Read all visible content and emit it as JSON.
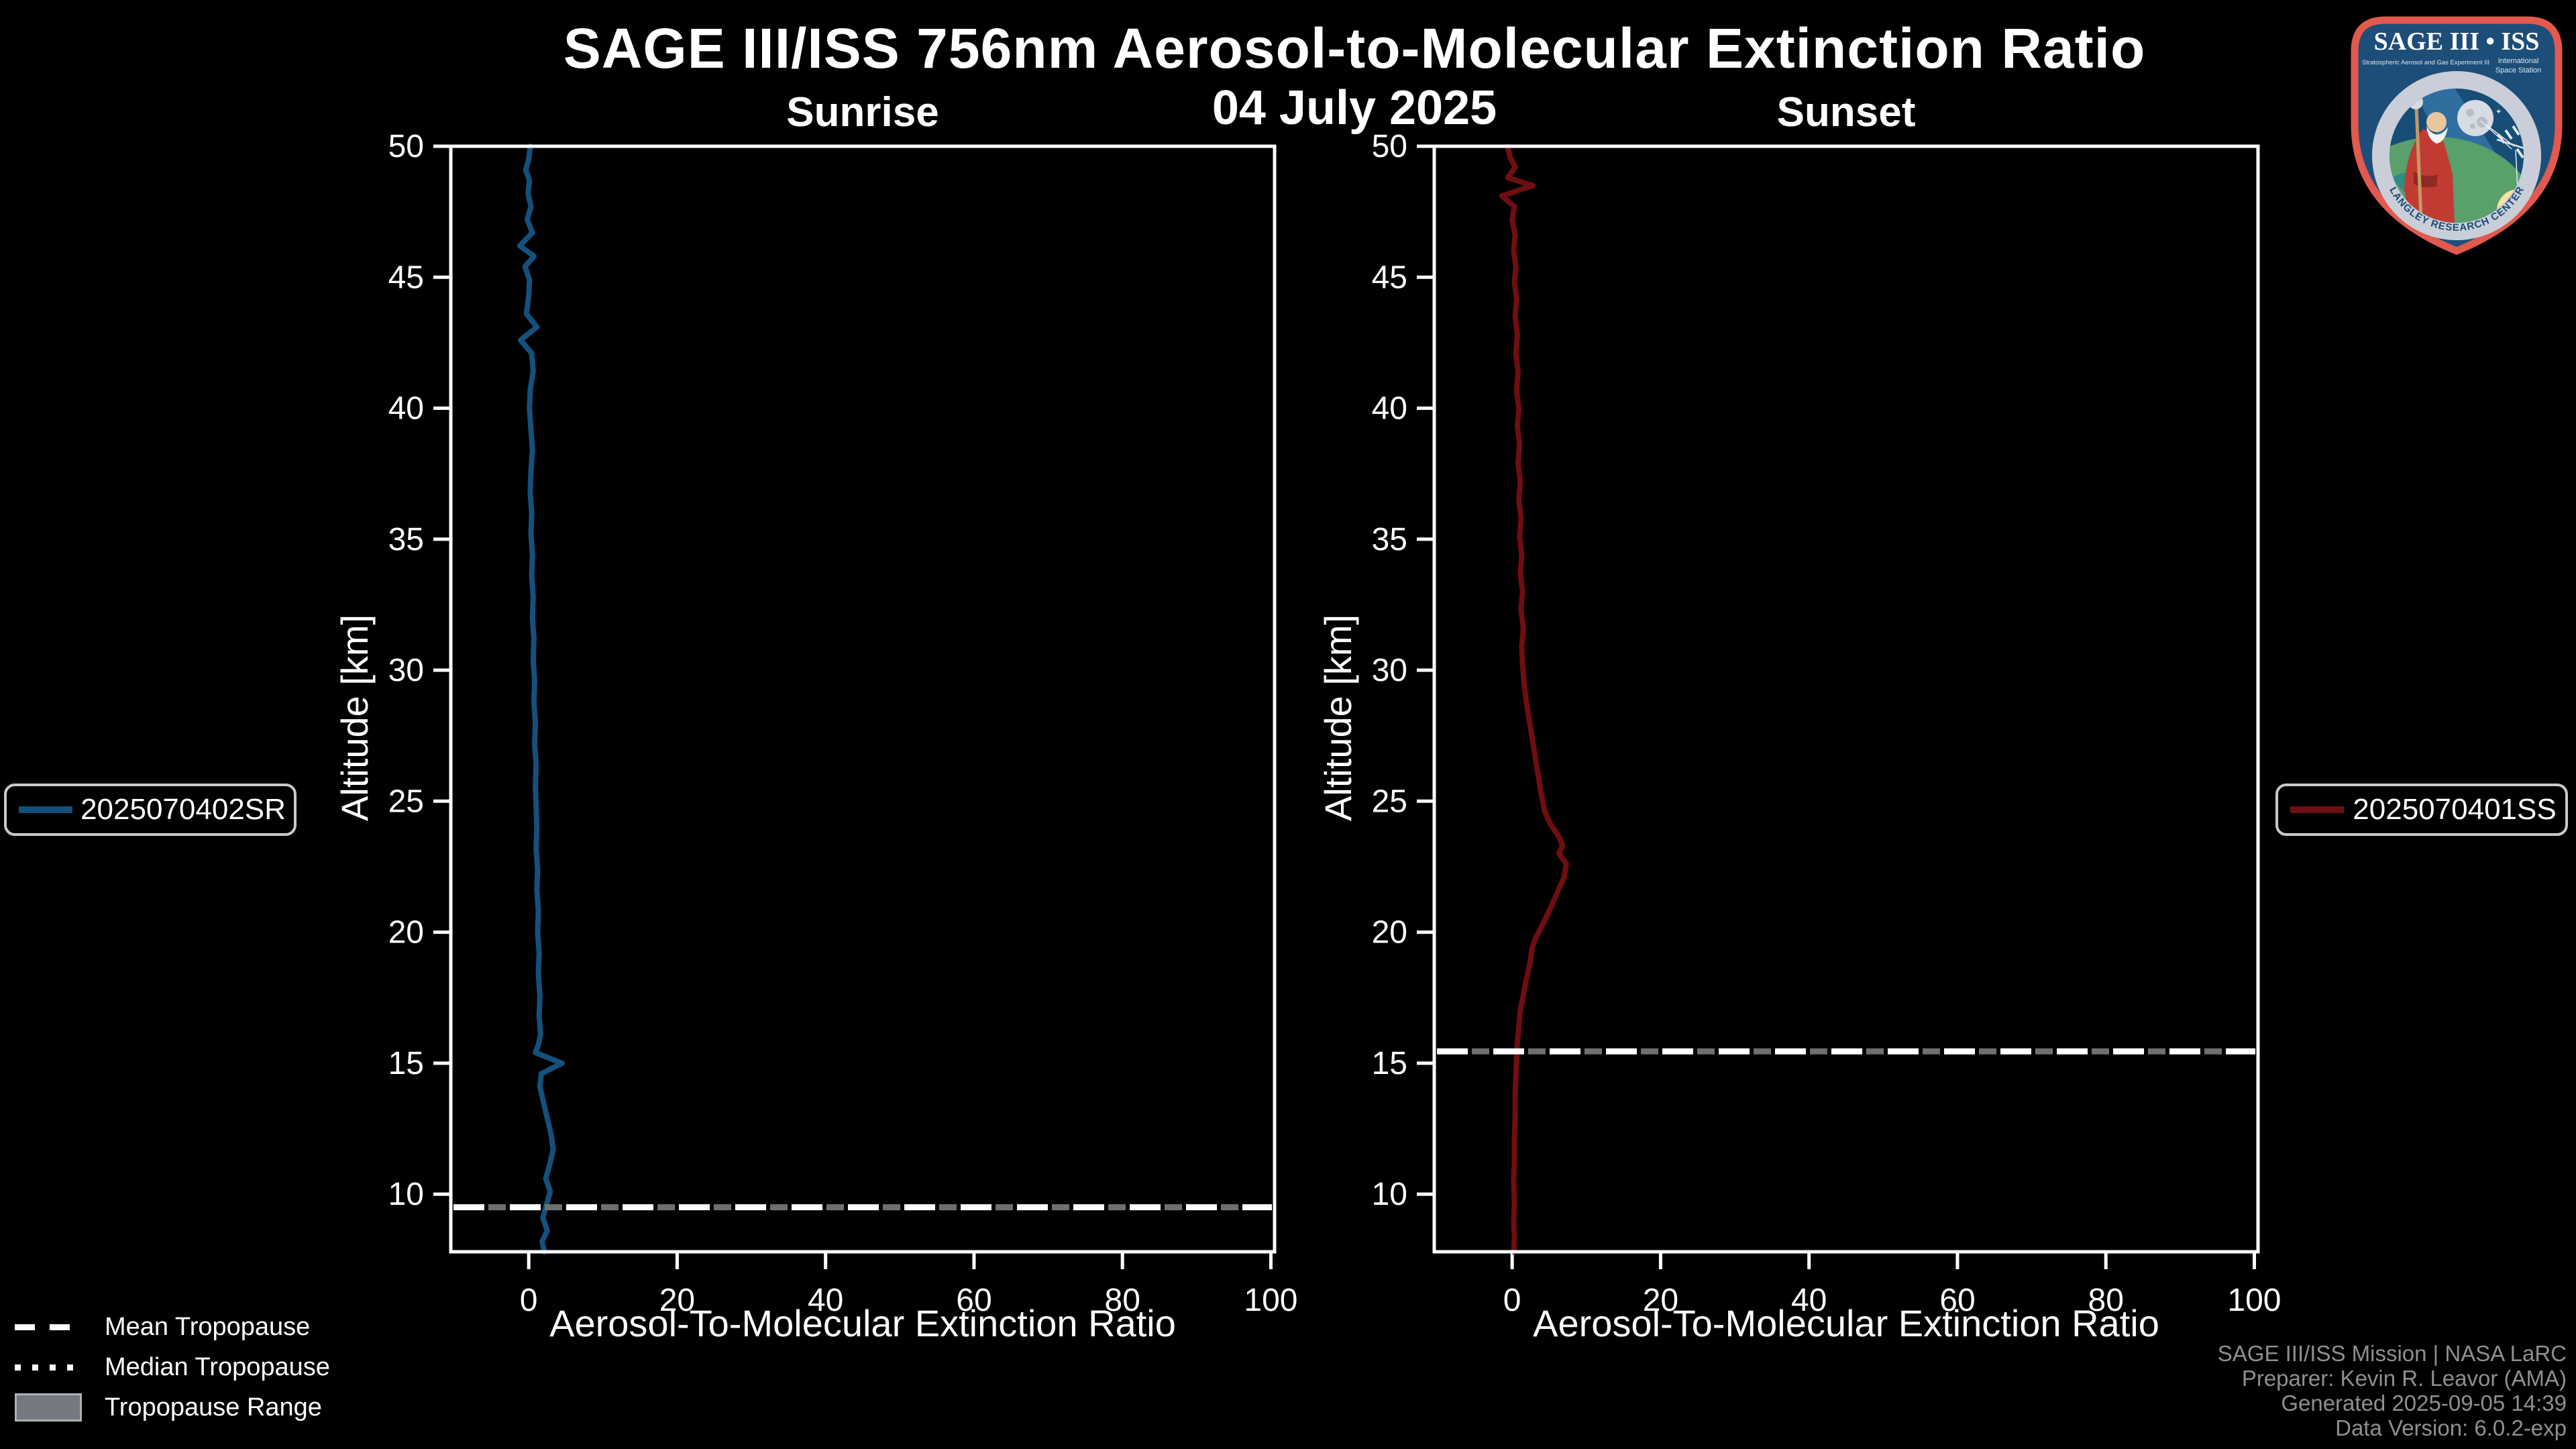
{
  "title": "SAGE III/ISS 756nm Aerosol-to-Molecular Extinction Ratio",
  "date_subtitle": "04 July 2025",
  "colors": {
    "background": "#000000",
    "axis": "#ffffff",
    "sunrise_line": "#15507c",
    "sunset_line": "#6f0e11",
    "tropopause_mean": "#ffffff",
    "tropopause_range": "#6f6f6f",
    "credits_text": "#8f8f8f",
    "legend_border": "#c9c9c9"
  },
  "panel_legends": {
    "sunrise": {
      "label": "2025070402SR"
    },
    "sunset": {
      "label": "2025070401SS"
    }
  },
  "tropopause_legend": {
    "mean": "Mean Tropopause",
    "median": "Median Tropopause",
    "range": "Tropopause Range"
  },
  "credits": {
    "line1": "SAGE III/ISS Mission | NASA LaRC",
    "line2": "Preparer: Kevin R. Leavor (AMA)",
    "line3": "Generated 2025-09-05 14:39",
    "line4": "Data Version: 6.0.2-exp"
  },
  "logo": {
    "title": "SAGE III • ISS",
    "subtitle_left": "Stratospheric Aerosol and Gas Experiment III",
    "subtitle_right1": "International",
    "subtitle_right2": "Space Station",
    "ring_text": "BALL • NASA LANGLEY RESEARCH CENTER • TAS-I • ESA"
  },
  "chart_data": [
    {
      "type": "line",
      "id": "sunrise",
      "title": "Sunrise",
      "xlabel": "Aerosol-To-Molecular Extinction Ratio",
      "ylabel": "Altitude [km]",
      "xlim": [
        -10.5,
        100.5
      ],
      "ylim": [
        7.8,
        50
      ],
      "xticks": [
        0,
        20,
        40,
        60,
        80,
        100
      ],
      "yticks": [
        10,
        15,
        20,
        25,
        30,
        35,
        40,
        45,
        50
      ],
      "grid": false,
      "legend_position": "outside-left",
      "mean_tropopause_km": 9.5,
      "series": [
        {
          "name": "2025070402SR",
          "color": "#15507c",
          "points": [
            [
              0.2,
              50
            ],
            [
              0,
              49.5
            ],
            [
              -0.4,
              49.1
            ],
            [
              0.1,
              48.7
            ],
            [
              -0.1,
              48.2
            ],
            [
              0.3,
              47.7
            ],
            [
              -0.2,
              47.2
            ],
            [
              0.5,
              46.7
            ],
            [
              -1.2,
              46.2
            ],
            [
              0.7,
              45.8
            ],
            [
              -0.5,
              45.4
            ],
            [
              0.1,
              44.9
            ],
            [
              0,
              44.3
            ],
            [
              -0.3,
              43.6
            ],
            [
              1.1,
              43.1
            ],
            [
              -1.1,
              42.6
            ],
            [
              0.4,
              42.1
            ],
            [
              0.6,
              41.4
            ],
            [
              0.2,
              40.7
            ],
            [
              0.1,
              40
            ],
            [
              0.3,
              39.2
            ],
            [
              0.5,
              38.4
            ],
            [
              0.3,
              37.6
            ],
            [
              0.2,
              36.8
            ],
            [
              0.4,
              36
            ],
            [
              0.3,
              35.2
            ],
            [
              0.5,
              34.4
            ],
            [
              0.4,
              33.6
            ],
            [
              0.6,
              32.8
            ],
            [
              0.5,
              32
            ],
            [
              0.7,
              31.2
            ],
            [
              0.6,
              30.4
            ],
            [
              0.8,
              29.6
            ],
            [
              0.7,
              28.8
            ],
            [
              0.9,
              28
            ],
            [
              0.8,
              27.2
            ],
            [
              1,
              26.4
            ],
            [
              0.9,
              25.6
            ],
            [
              1,
              24.8
            ],
            [
              1.1,
              24
            ],
            [
              1,
              23.2
            ],
            [
              1.2,
              22.4
            ],
            [
              1.1,
              21.6
            ],
            [
              1.3,
              20.8
            ],
            [
              1.2,
              20
            ],
            [
              1.4,
              19.2
            ],
            [
              1.3,
              18.4
            ],
            [
              1.5,
              17.6
            ],
            [
              1.4,
              16.8
            ],
            [
              1.6,
              16.1
            ],
            [
              1.3,
              15.7
            ],
            [
              0.9,
              15.4
            ],
            [
              4.5,
              15
            ],
            [
              1.7,
              14.6
            ],
            [
              1.5,
              14.1
            ],
            [
              2,
              13.5
            ],
            [
              2.5,
              12.9
            ],
            [
              3,
              12.3
            ],
            [
              3.3,
              11.7
            ],
            [
              2.8,
              11.1
            ],
            [
              2.3,
              10.6
            ],
            [
              2.9,
              10.1
            ],
            [
              2.4,
              9.6
            ],
            [
              1.9,
              9.1
            ],
            [
              2.5,
              8.6
            ],
            [
              1.8,
              8.2
            ],
            [
              2.1,
              7.8
            ]
          ]
        }
      ]
    },
    {
      "type": "line",
      "id": "sunset",
      "title": "Sunset",
      "xlabel": "Aerosol-To-Molecular Extinction Ratio",
      "ylabel": "Altitude [km]",
      "xlim": [
        -10.5,
        100.5
      ],
      "ylim": [
        7.8,
        50
      ],
      "xticks": [
        0,
        20,
        40,
        60,
        80,
        100
      ],
      "yticks": [
        10,
        15,
        20,
        25,
        30,
        35,
        40,
        45,
        50
      ],
      "grid": false,
      "legend_position": "outside-right",
      "mean_tropopause_km": 15.45,
      "series": [
        {
          "name": "2025070401SS",
          "color": "#6f0e11",
          "points": [
            [
              -0.6,
              50
            ],
            [
              -0.3,
              49.6
            ],
            [
              0.4,
              49.2
            ],
            [
              -0.6,
              48.8
            ],
            [
              2.8,
              48.5
            ],
            [
              -1.4,
              48.1
            ],
            [
              0.3,
              47.7
            ],
            [
              0,
              47.2
            ],
            [
              0.4,
              46.6
            ],
            [
              0.2,
              46
            ],
            [
              0.5,
              45.4
            ],
            [
              0.3,
              44.8
            ],
            [
              0.6,
              44.2
            ],
            [
              0.4,
              43.5
            ],
            [
              0.7,
              42.8
            ],
            [
              0.5,
              42.1
            ],
            [
              0.8,
              41.4
            ],
            [
              0.6,
              40.7
            ],
            [
              0.9,
              40
            ],
            [
              0.7,
              39.3
            ],
            [
              1,
              38.6
            ],
            [
              0.8,
              37.9
            ],
            [
              1.1,
              37.2
            ],
            [
              0.9,
              36.5
            ],
            [
              1.2,
              35.8
            ],
            [
              1,
              35.1
            ],
            [
              1.3,
              34.4
            ],
            [
              1.1,
              33.7
            ],
            [
              1.4,
              33
            ],
            [
              1.2,
              32.3
            ],
            [
              1.5,
              31.6
            ],
            [
              1.3,
              30.9
            ],
            [
              1.4,
              30.2
            ],
            [
              1.6,
              29.5
            ],
            [
              1.9,
              28.8
            ],
            [
              2.3,
              28.1
            ],
            [
              2.7,
              27.4
            ],
            [
              3.1,
              26.7
            ],
            [
              3.5,
              26
            ],
            [
              3.9,
              25.3
            ],
            [
              4.4,
              24.6
            ],
            [
              5.2,
              24.1
            ],
            [
              6.2,
              23.7
            ],
            [
              6.8,
              23.3
            ],
            [
              6.3,
              23
            ],
            [
              7.3,
              22.6
            ],
            [
              7,
              22.1
            ],
            [
              6.2,
              21.6
            ],
            [
              5.3,
              21
            ],
            [
              4.3,
              20.4
            ],
            [
              3.2,
              19.8
            ],
            [
              2.7,
              19.4
            ],
            [
              2.4,
              18.8
            ],
            [
              1.9,
              18.2
            ],
            [
              1.5,
              17.6
            ],
            [
              1.1,
              17
            ],
            [
              0.9,
              16.4
            ],
            [
              0.7,
              15.8
            ],
            [
              0.6,
              15.2
            ],
            [
              0.5,
              14.5
            ],
            [
              0.4,
              13.7
            ],
            [
              0.4,
              12.9
            ],
            [
              0.3,
              12.1
            ],
            [
              0.3,
              11.3
            ],
            [
              0.2,
              10.5
            ],
            [
              0.3,
              9.7
            ],
            [
              0.2,
              8.9
            ],
            [
              0.3,
              8.3
            ],
            [
              0.2,
              7.8
            ]
          ]
        }
      ]
    }
  ]
}
